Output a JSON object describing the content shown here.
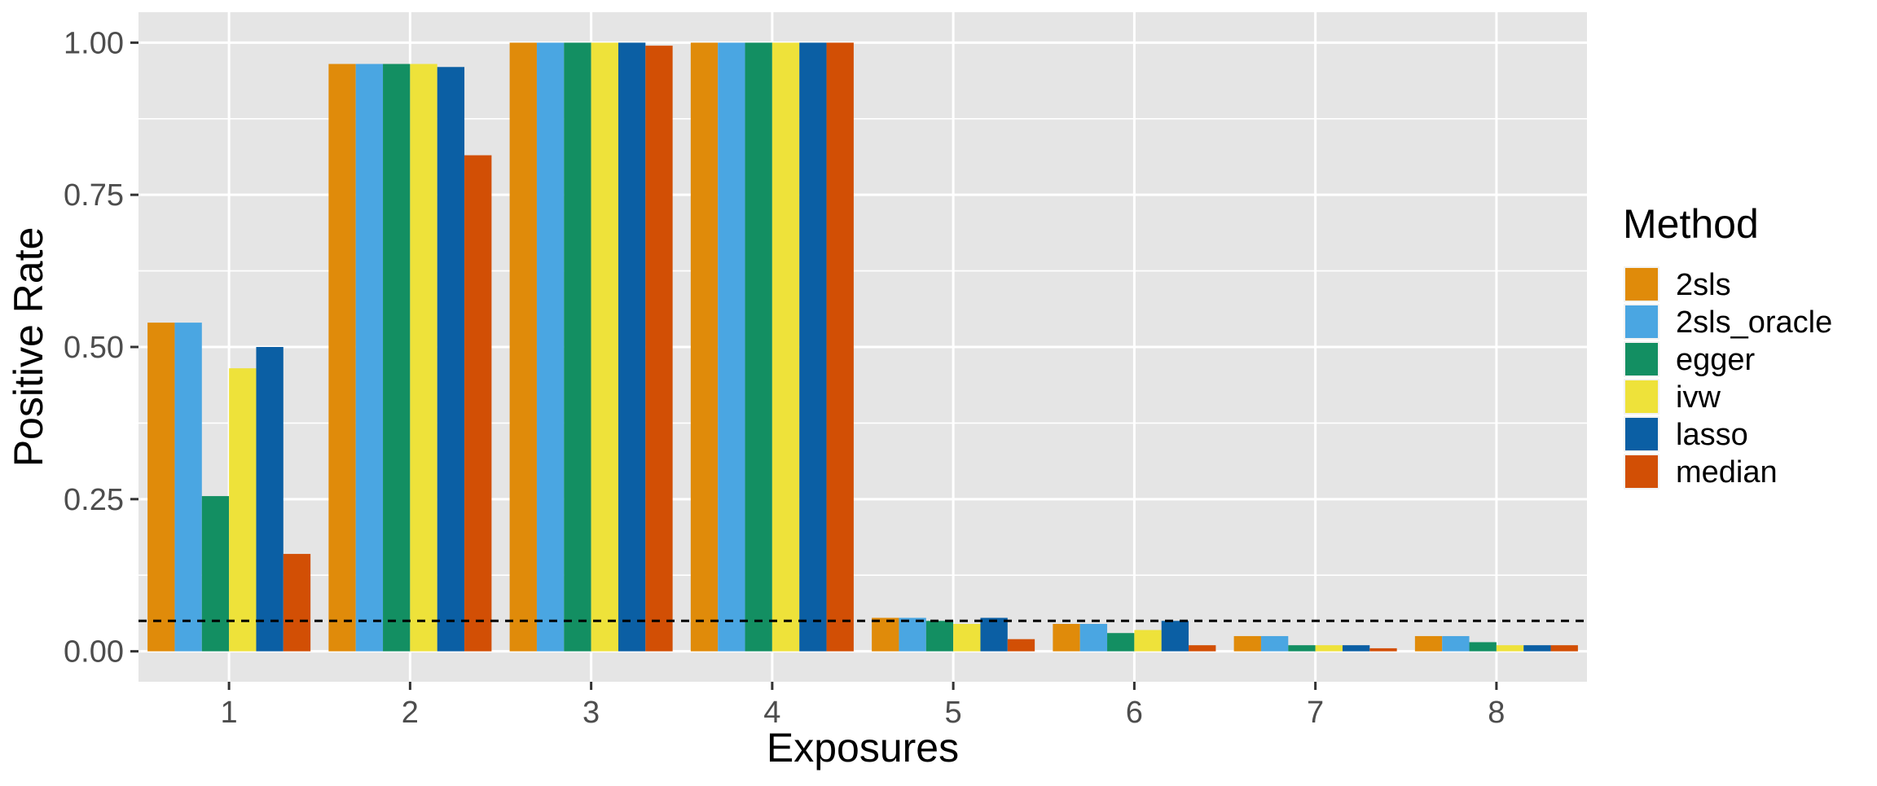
{
  "chart_data": {
    "type": "bar",
    "title": "",
    "xlabel": "Exposures",
    "ylabel": "Positive Rate",
    "categories": [
      "1",
      "2",
      "3",
      "4",
      "5",
      "6",
      "7",
      "8"
    ],
    "ylim": [
      -0.05,
      1.05
    ],
    "yticks": [
      0.0,
      0.25,
      0.5,
      0.75,
      1.0
    ],
    "ytick_labels": [
      "0.00",
      "0.25",
      "0.50",
      "0.75",
      "1.00"
    ],
    "grid": true,
    "reference_line": {
      "y": 0.05,
      "style": "dashed",
      "color": "#000000"
    },
    "legend": {
      "title": "Method",
      "position": "right"
    },
    "colors": {
      "panel_background": "#e5e5e5",
      "grid": "#ffffff",
      "text": "#4d4d4d"
    },
    "series": [
      {
        "name": "2sls",
        "color": "#E08B0A",
        "values": [
          0.54,
          0.965,
          1.0,
          1.0,
          0.055,
          0.045,
          0.025,
          0.025
        ]
      },
      {
        "name": "2sls_oracle",
        "color": "#4AA6E2",
        "values": [
          0.54,
          0.965,
          1.0,
          1.0,
          0.055,
          0.045,
          0.025,
          0.025
        ]
      },
      {
        "name": "egger",
        "color": "#138F62",
        "values": [
          0.255,
          0.965,
          1.0,
          1.0,
          0.05,
          0.03,
          0.01,
          0.015
        ]
      },
      {
        "name": "ivw",
        "color": "#EEE23A",
        "values": [
          0.465,
          0.965,
          1.0,
          1.0,
          0.045,
          0.035,
          0.01,
          0.01
        ]
      },
      {
        "name": "lasso",
        "color": "#0B5FA4",
        "values": [
          0.5,
          0.96,
          1.0,
          1.0,
          0.055,
          0.05,
          0.01,
          0.01
        ]
      },
      {
        "name": "median",
        "color": "#D24F05",
        "values": [
          0.16,
          0.815,
          0.995,
          1.0,
          0.02,
          0.01,
          0.005,
          0.01
        ]
      }
    ]
  }
}
